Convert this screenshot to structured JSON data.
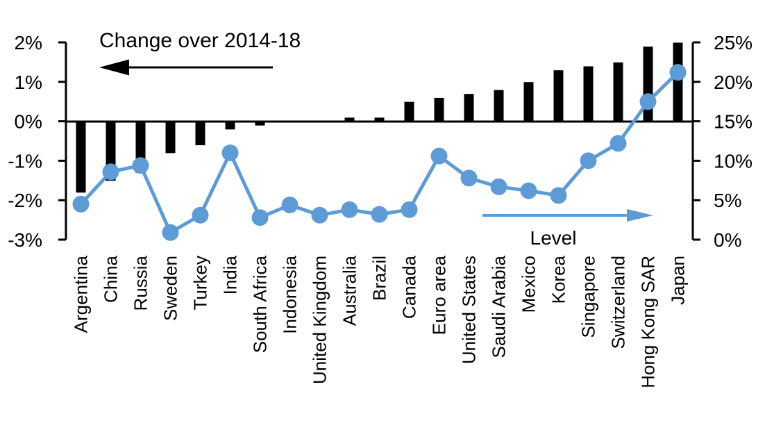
{
  "chart_data": {
    "type": "bar",
    "combo": "bar + line, dual axis",
    "title": "",
    "grid": false,
    "legend_position": "in-plot annotations with arrows",
    "categories": [
      "Argentina",
      "China",
      "Russia",
      "Sweden",
      "Turkey",
      "India",
      "South Africa",
      "Indonesia",
      "United Kingdom",
      "Australia",
      "Brazil",
      "Canada",
      "Euro area",
      "United States",
      "Saudi Arabia",
      "Mexico",
      "Korea",
      "Singapore",
      "Switzerland",
      "Hong Kong SAR",
      "Japan"
    ],
    "series": [
      {
        "name": "Change over 2014-18",
        "type": "bar",
        "axis": "left",
        "unit": "%",
        "color": "#000000",
        "values": [
          -1.8,
          -1.5,
          -1.3,
          -0.8,
          -0.6,
          -0.2,
          -0.1,
          0,
          0,
          0.1,
          0.1,
          0.5,
          0.6,
          0.7,
          0.8,
          1.0,
          1.3,
          1.4,
          1.5,
          1.9,
          2.0
        ]
      },
      {
        "name": "Level",
        "type": "line",
        "axis": "right",
        "unit": "%",
        "color": "#5C9BD5",
        "marker": "circle",
        "values": [
          4.5,
          8.6,
          9.4,
          0.9,
          3.1,
          11.0,
          2.8,
          4.4,
          3.1,
          3.8,
          3.2,
          3.8,
          10.6,
          7.8,
          6.7,
          6.2,
          5.6,
          10.0,
          12.2,
          17.5,
          21.2
        ]
      }
    ],
    "left_axis": {
      "min": -3,
      "max": 2,
      "tick_step": 1,
      "tick_labels": [
        "2%",
        "1%",
        "0%",
        "-1%",
        "-2%",
        "-3%"
      ]
    },
    "right_axis": {
      "min": 0,
      "max": 25,
      "tick_step": 5,
      "tick_labels": [
        "25%",
        "20%",
        "15%",
        "10%",
        "5%",
        "0%"
      ]
    }
  }
}
